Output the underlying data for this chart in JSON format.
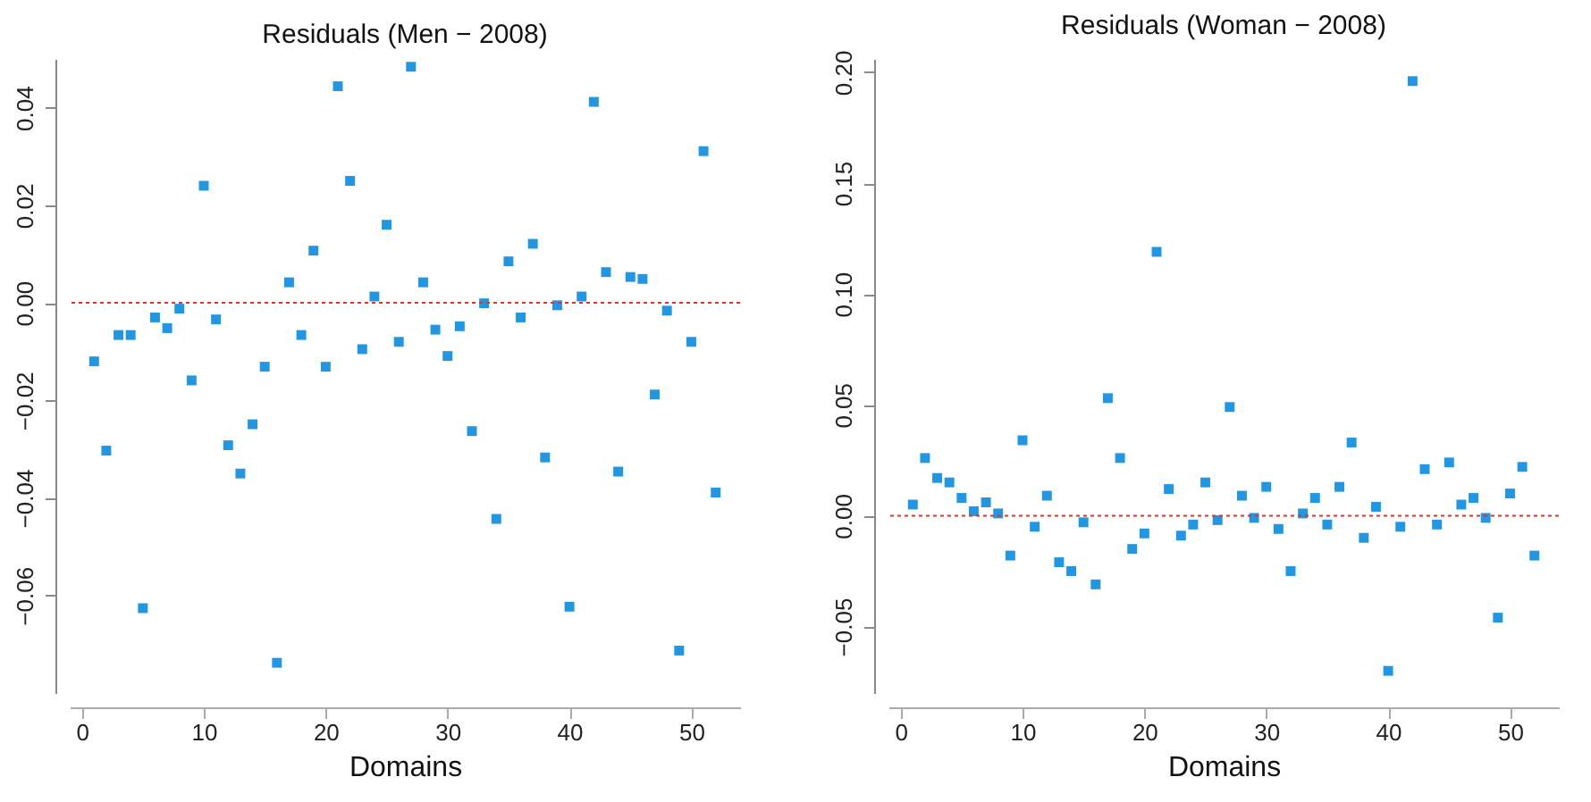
{
  "chart_data": [
    {
      "type": "scatter",
      "title": "Residuals (Men − 2008)",
      "xlabel": "Domains",
      "x": [
        1,
        2,
        3,
        4,
        5,
        6,
        7,
        8,
        9,
        10,
        11,
        12,
        13,
        14,
        15,
        16,
        17,
        18,
        19,
        20,
        21,
        22,
        23,
        24,
        25,
        26,
        27,
        28,
        29,
        30,
        31,
        32,
        33,
        34,
        35,
        36,
        37,
        38,
        39,
        40,
        41,
        42,
        43,
        44,
        45,
        46,
        47,
        48,
        49,
        50,
        51,
        52
      ],
      "series": [
        {
          "color": "#2196e3",
          "values": [
            -0.012,
            -0.0303,
            -0.0066,
            -0.0066,
            -0.0626,
            -0.003,
            -0.0052,
            -0.0012,
            -0.0159,
            0.024,
            -0.0034,
            -0.0292,
            -0.035,
            -0.0249,
            -0.0131,
            -0.0738,
            0.0042,
            -0.0066,
            0.0107,
            -0.0131,
            0.0444,
            0.025,
            -0.0095,
            0.0013,
            0.016,
            -0.008,
            0.0484,
            0.0042,
            -0.0055,
            -0.0109,
            -0.0048,
            -0.0263,
            -0.0001,
            -0.0443,
            0.0085,
            -0.003,
            0.0121,
            -0.0317,
            -0.0005,
            -0.0623,
            0.0013,
            0.0412,
            0.0063,
            -0.0346,
            0.0053,
            0.0049,
            -0.0188,
            -0.0016,
            -0.0713,
            -0.008,
            0.0311,
            -0.0389
          ]
        }
      ],
      "xlim": [
        -1,
        54
      ],
      "xticks": [
        0,
        10,
        20,
        30,
        40,
        50
      ],
      "ylim": [
        -0.08,
        0.05
      ],
      "yticks": [
        {
          "value": -0.06,
          "label": "−0.06"
        },
        {
          "value": -0.04,
          "label": "−0.04"
        },
        {
          "value": -0.02,
          "label": "−0.02"
        },
        {
          "value": 0,
          "label": "0.00"
        },
        {
          "value": 0.02,
          "label": "0.02"
        },
        {
          "value": 0.04,
          "label": "0.04"
        }
      ],
      "ref_lines": [
        {
          "axis": "y",
          "value": 0,
          "color": "#e0332e",
          "line_style": "dotted"
        }
      ],
      "marker": "square",
      "grid": false
    },
    {
      "type": "scatter",
      "title": "Residuals (Woman − 2008)",
      "xlabel": "Domains",
      "x": [
        1,
        2,
        3,
        4,
        5,
        6,
        7,
        8,
        9,
        10,
        11,
        12,
        13,
        14,
        15,
        16,
        17,
        18,
        19,
        20,
        21,
        22,
        23,
        24,
        25,
        26,
        27,
        28,
        29,
        30,
        31,
        32,
        33,
        34,
        35,
        36,
        37,
        38,
        39,
        40,
        41,
        42,
        43,
        44,
        45,
        46,
        47,
        48,
        49,
        50,
        51,
        52
      ],
      "series": [
        {
          "color": "#2196e3",
          "values": [
            0.005,
            0.026,
            0.017,
            0.015,
            0.008,
            0.002,
            0.006,
            0.001,
            -0.018,
            0.034,
            -0.005,
            0.009,
            -0.021,
            -0.025,
            -0.003,
            -0.031,
            0.053,
            0.026,
            -0.015,
            -0.008,
            0.119,
            0.012,
            -0.009,
            -0.004,
            0.015,
            -0.002,
            0.049,
            0.009,
            -0.001,
            0.013,
            -0.006,
            -0.025,
            0.001,
            0.008,
            -0.004,
            0.013,
            0.033,
            -0.01,
            0.004,
            -0.07,
            -0.005,
            0.196,
            0.021,
            -0.004,
            0.024,
            0.005,
            0.008,
            -0.001,
            -0.046,
            0.01,
            0.022,
            -0.018
          ]
        }
      ],
      "xlim": [
        -1,
        54
      ],
      "xticks": [
        0,
        10,
        20,
        30,
        40,
        50
      ],
      "ylim": [
        -0.08,
        0.206
      ],
      "yticks": [
        {
          "value": -0.05,
          "label": "−0.05"
        },
        {
          "value": 0,
          "label": "0.00"
        },
        {
          "value": 0.05,
          "label": "0.05"
        },
        {
          "value": 0.1,
          "label": "0.10"
        },
        {
          "value": 0.15,
          "label": "0.15"
        },
        {
          "value": 0.2,
          "label": "0.20"
        }
      ],
      "ref_lines": [
        {
          "axis": "y",
          "value": 0,
          "color": "#e0332e",
          "line_style": "dotted"
        }
      ],
      "marker": "square",
      "grid": false
    }
  ]
}
